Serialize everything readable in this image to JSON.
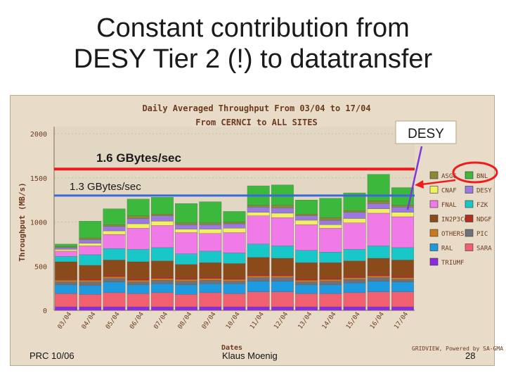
{
  "slide": {
    "title_line1": "Constant contribution from",
    "title_line2": "DESY Tier 2 (!) to datatransfer",
    "footer_left": "PRC 10/06",
    "footer_center": "Klaus Moenig",
    "footer_right": "28"
  },
  "chart_data": {
    "type": "bar",
    "stacked": true,
    "title_line1": "Daily Averaged Throughput From 03/04 to 17/04",
    "title_line2": "From CERNCI to ALL SITES",
    "ylabel": "Throughput (MB/s)",
    "xlabel": "Dates",
    "ylim": [
      0,
      2000
    ],
    "yticks": [
      0,
      500,
      1000,
      1500,
      2000
    ],
    "categories": [
      "03/04",
      "04/04",
      "05/04",
      "06/04",
      "07/04",
      "08/04",
      "09/04",
      "10/04",
      "11/04",
      "12/04",
      "13/04",
      "14/04",
      "15/04",
      "16/04",
      "17/04"
    ],
    "series": [
      {
        "name": "TRIUMF",
        "color": "#8a2be2",
        "values": [
          40,
          40,
          40,
          40,
          40,
          40,
          40,
          40,
          40,
          40,
          40,
          40,
          40,
          40,
          40
        ]
      },
      {
        "name": "SARA",
        "color": "#f06070",
        "values": [
          150,
          140,
          160,
          150,
          160,
          140,
          160,
          150,
          170,
          170,
          150,
          150,
          160,
          170,
          170
        ]
      },
      {
        "name": "RAL",
        "color": "#1e9be0",
        "values": [
          100,
          100,
          120,
          100,
          100,
          110,
          100,
          110,
          120,
          120,
          100,
          100,
          110,
          120,
          110
        ]
      },
      {
        "name": "PIC",
        "color": "#70707a",
        "values": [
          30,
          40,
          40,
          30,
          40,
          40,
          40,
          30,
          40,
          40,
          30,
          40,
          40,
          40,
          30
        ]
      },
      {
        "name": "OTHERS",
        "color": "#c87a1e",
        "values": [
          20,
          20,
          20,
          20,
          20,
          20,
          20,
          20,
          20,
          20,
          20,
          20,
          20,
          20,
          20
        ]
      },
      {
        "name": "NDGF",
        "color": "#b03020",
        "values": [
          10,
          20,
          20,
          20,
          20,
          20,
          20,
          20,
          20,
          20,
          20,
          20,
          20,
          20,
          20
        ]
      },
      {
        "name": "IN2P3CC",
        "color": "#8a4a1a",
        "values": [
          200,
          150,
          170,
          190,
          180,
          150,
          160,
          160,
          190,
          180,
          180,
          170,
          170,
          180,
          180
        ]
      },
      {
        "name": "FZK",
        "color": "#18c8c8",
        "values": [
          60,
          120,
          130,
          140,
          150,
          120,
          130,
          120,
          150,
          140,
          140,
          120,
          130,
          140,
          140
        ]
      },
      {
        "name": "FNAL",
        "color": "#f07ae8",
        "values": [
          60,
          100,
          160,
          240,
          250,
          240,
          200,
          230,
          320,
          320,
          290,
          270,
          300,
          370,
          350
        ]
      },
      {
        "name": "CNAF",
        "color": "#f0f060",
        "values": [
          20,
          30,
          40,
          50,
          50,
          40,
          50,
          50,
          40,
          50,
          50,
          40,
          50,
          50,
          50
        ]
      },
      {
        "name": "DESY",
        "color": "#9a7ae0",
        "values": [
          20,
          40,
          50,
          60,
          60,
          50,
          50,
          50,
          60,
          60,
          50,
          50,
          70,
          60,
          60
        ]
      },
      {
        "name": "ASGC",
        "color": "#8a8a30",
        "values": [
          10,
          20,
          20,
          30,
          20,
          20,
          20,
          20,
          20,
          30,
          20,
          30,
          20,
          30,
          20
        ]
      },
      {
        "name": "BNL",
        "color": "#3cb83c",
        "values": [
          30,
          190,
          180,
          190,
          190,
          220,
          240,
          120,
          220,
          230,
          160,
          220,
          200,
          300,
          200
        ]
      }
    ],
    "legend": [
      "ASGC",
      "BNL",
      "CNAF",
      "DESY",
      "FNAL",
      "FZK",
      "IN2P3CC",
      "NDGF",
      "OTHERS",
      "PIC",
      "RAL",
      "SARA",
      "TRIUMF"
    ],
    "reference_lines": [
      {
        "label": "1.6 GBytes/sec",
        "value": 1600,
        "color": "#ee1c1c"
      },
      {
        "label": "1.3 GBytes/sec",
        "value": 1300,
        "color": "#3a6ad8"
      }
    ],
    "annotation": "DESY",
    "credit": "GRIDVIEW, Powered by SA-GMA"
  }
}
